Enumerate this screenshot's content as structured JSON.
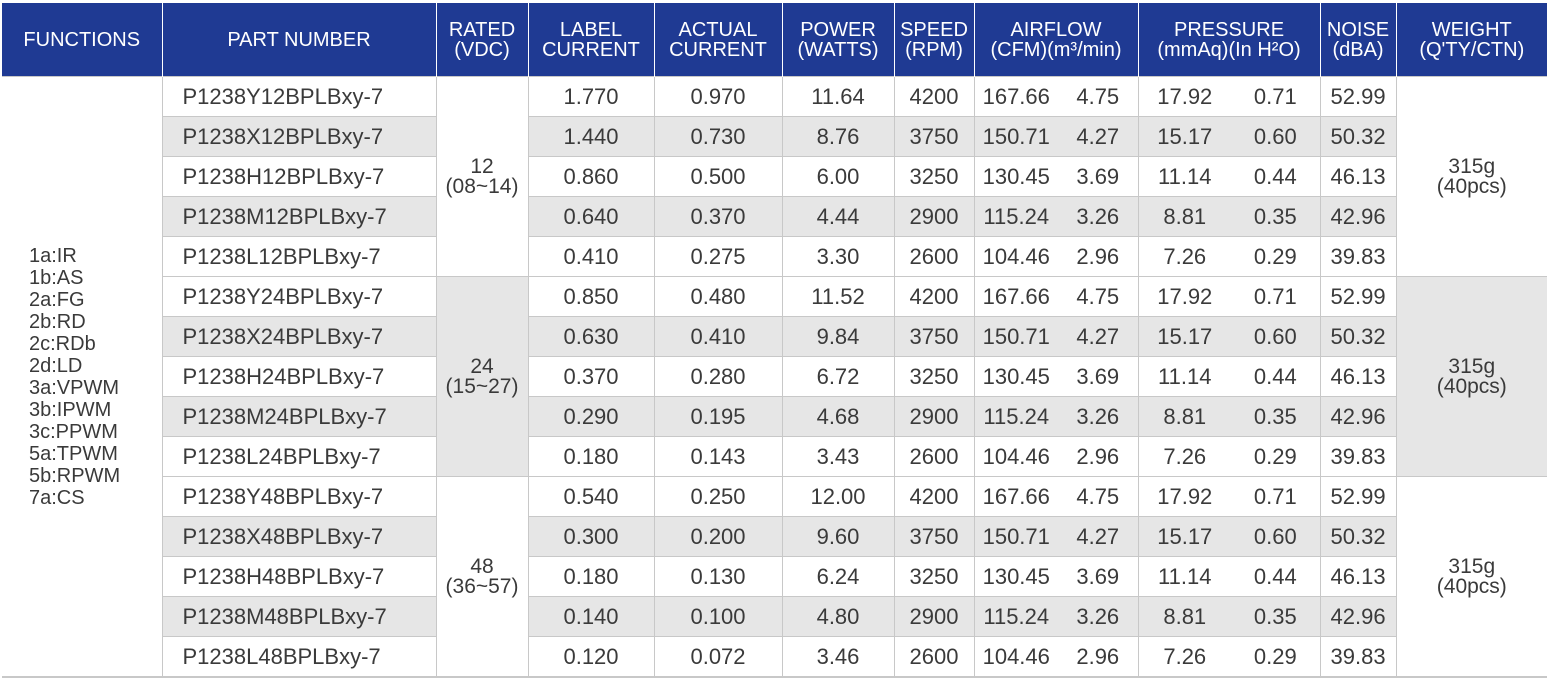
{
  "headers": {
    "functions": "FUNCTIONS",
    "part_number": "PART NUMBER",
    "rated": [
      "RATED",
      "(VDC)"
    ],
    "label_current": [
      "LABEL",
      "CURRENT"
    ],
    "actual_current": [
      "ACTUAL",
      "CURRENT"
    ],
    "power": [
      "POWER",
      "(WATTS)"
    ],
    "speed": [
      "SPEED",
      "(RPM)"
    ],
    "airflow": [
      "AIRFLOW",
      "(CFM)(m³/min)"
    ],
    "pressure": [
      "PRESSURE",
      "(mmAq)(In H²O)"
    ],
    "noise": [
      "NOISE",
      "(dBA)"
    ],
    "weight": [
      "WEIGHT",
      "(Q'TY/CTN)"
    ]
  },
  "functions": [
    "1a:IR",
    "1b:AS",
    "2a:FG",
    "2b:RD",
    "2c:RDb",
    "2d:LD",
    "3a:VPWM",
    "3b:IPWM",
    "3c:PPWM",
    "5a:TPWM",
    "5b:RPWM",
    "7a:CS"
  ],
  "groups": [
    {
      "rated": [
        "12",
        "(08~14)"
      ],
      "weight": [
        "315g",
        "(40pcs)"
      ],
      "rows": [
        {
          "part": "P1238Y12BPLBxy-7",
          "label_current": "1.770",
          "actual_current": "0.970",
          "power": "11.64",
          "speed": "4200",
          "cfm": "167.66",
          "m3min": "4.75",
          "mmaq": "17.92",
          "inh2o": "0.71",
          "noise": "52.99"
        },
        {
          "part": "P1238X12BPLBxy-7",
          "label_current": "1.440",
          "actual_current": "0.730",
          "power": "8.76",
          "speed": "3750",
          "cfm": "150.71",
          "m3min": "4.27",
          "mmaq": "15.17",
          "inh2o": "0.60",
          "noise": "50.32"
        },
        {
          "part": "P1238H12BPLBxy-7",
          "label_current": "0.860",
          "actual_current": "0.500",
          "power": "6.00",
          "speed": "3250",
          "cfm": "130.45",
          "m3min": "3.69",
          "mmaq": "11.14",
          "inh2o": "0.44",
          "noise": "46.13"
        },
        {
          "part": "P1238M12BPLBxy-7",
          "label_current": "0.640",
          "actual_current": "0.370",
          "power": "4.44",
          "speed": "2900",
          "cfm": "115.24",
          "m3min": "3.26",
          "mmaq": "8.81",
          "inh2o": "0.35",
          "noise": "42.96"
        },
        {
          "part": "P1238L12BPLBxy-7",
          "label_current": "0.410",
          "actual_current": "0.275",
          "power": "3.30",
          "speed": "2600",
          "cfm": "104.46",
          "m3min": "2.96",
          "mmaq": "7.26",
          "inh2o": "0.29",
          "noise": "39.83"
        }
      ]
    },
    {
      "rated": [
        "24",
        "(15~27)"
      ],
      "weight": [
        "315g",
        "(40pcs)"
      ],
      "rows": [
        {
          "part": "P1238Y24BPLBxy-7",
          "label_current": "0.850",
          "actual_current": "0.480",
          "power": "11.52",
          "speed": "4200",
          "cfm": "167.66",
          "m3min": "4.75",
          "mmaq": "17.92",
          "inh2o": "0.71",
          "noise": "52.99"
        },
        {
          "part": "P1238X24BPLBxy-7",
          "label_current": "0.630",
          "actual_current": "0.410",
          "power": "9.84",
          "speed": "3750",
          "cfm": "150.71",
          "m3min": "4.27",
          "mmaq": "15.17",
          "inh2o": "0.60",
          "noise": "50.32"
        },
        {
          "part": "P1238H24BPLBxy-7",
          "label_current": "0.370",
          "actual_current": "0.280",
          "power": "6.72",
          "speed": "3250",
          "cfm": "130.45",
          "m3min": "3.69",
          "mmaq": "11.14",
          "inh2o": "0.44",
          "noise": "46.13"
        },
        {
          "part": "P1238M24BPLBxy-7",
          "label_current": "0.290",
          "actual_current": "0.195",
          "power": "4.68",
          "speed": "2900",
          "cfm": "115.24",
          "m3min": "3.26",
          "mmaq": "8.81",
          "inh2o": "0.35",
          "noise": "42.96"
        },
        {
          "part": "P1238L24BPLBxy-7",
          "label_current": "0.180",
          "actual_current": "0.143",
          "power": "3.43",
          "speed": "2600",
          "cfm": "104.46",
          "m3min": "2.96",
          "mmaq": "7.26",
          "inh2o": "0.29",
          "noise": "39.83"
        }
      ]
    },
    {
      "rated": [
        "48",
        "(36~57)"
      ],
      "weight": [
        "315g",
        "(40pcs)"
      ],
      "rows": [
        {
          "part": "P1238Y48BPLBxy-7",
          "label_current": "0.540",
          "actual_current": "0.250",
          "power": "12.00",
          "speed": "4200",
          "cfm": "167.66",
          "m3min": "4.75",
          "mmaq": "17.92",
          "inh2o": "0.71",
          "noise": "52.99"
        },
        {
          "part": "P1238X48BPLBxy-7",
          "label_current": "0.300",
          "actual_current": "0.200",
          "power": "9.60",
          "speed": "3750",
          "cfm": "150.71",
          "m3min": "4.27",
          "mmaq": "15.17",
          "inh2o": "0.60",
          "noise": "50.32"
        },
        {
          "part": "P1238H48BPLBxy-7",
          "label_current": "0.180",
          "actual_current": "0.130",
          "power": "6.24",
          "speed": "3250",
          "cfm": "130.45",
          "m3min": "3.69",
          "mmaq": "11.14",
          "inh2o": "0.44",
          "noise": "46.13"
        },
        {
          "part": "P1238M48BPLBxy-7",
          "label_current": "0.140",
          "actual_current": "0.100",
          "power": "4.80",
          "speed": "2900",
          "cfm": "115.24",
          "m3min": "3.26",
          "mmaq": "8.81",
          "inh2o": "0.35",
          "noise": "42.96"
        },
        {
          "part": "P1238L48BPLBxy-7",
          "label_current": "0.120",
          "actual_current": "0.072",
          "power": "3.46",
          "speed": "2600",
          "cfm": "104.46",
          "m3min": "2.96",
          "mmaq": "7.26",
          "inh2o": "0.29",
          "noise": "39.83"
        }
      ]
    }
  ],
  "colors": {
    "header_bg": "#1f3a93",
    "header_text": "#ffffff",
    "shaded_row": "#e6e6e6",
    "grid_line": "#c8c8c8",
    "body_text": "#3a3a3a"
  }
}
